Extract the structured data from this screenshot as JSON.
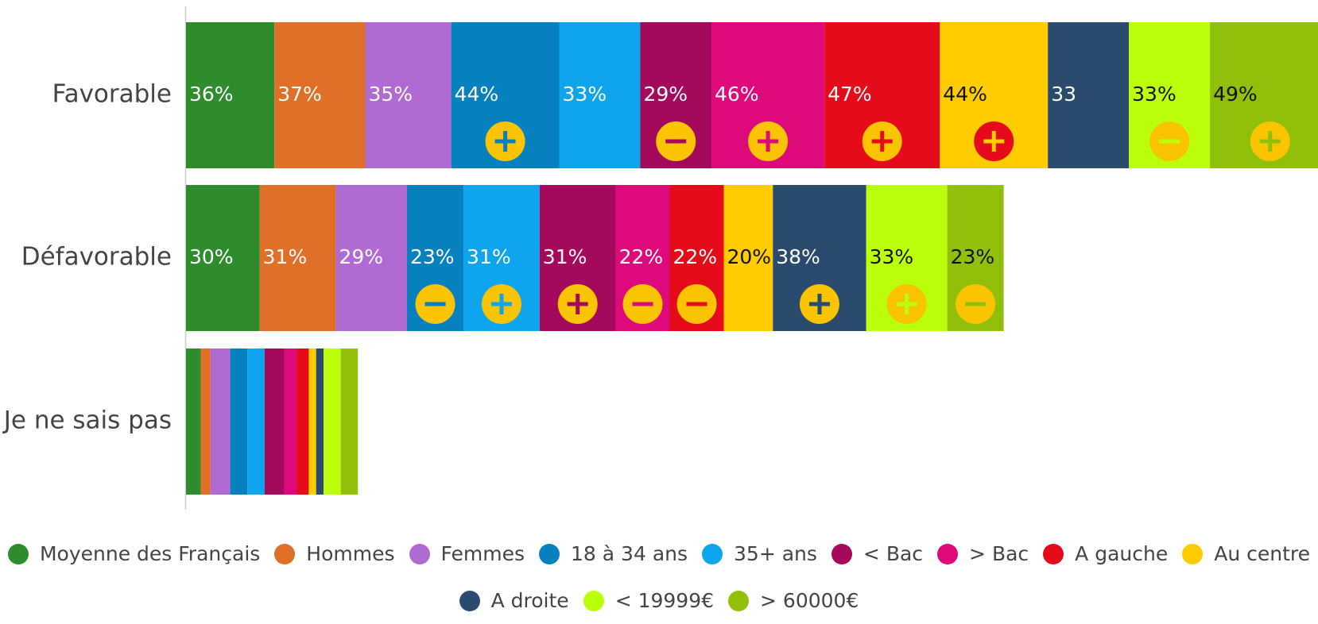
{
  "chart_data": {
    "type": "stacked-bar-horizontal",
    "categories": [
      "Favorable",
      "Défavorable",
      "Je ne sais pas"
    ],
    "xlim": [
      0,
      461
    ],
    "series": [
      {
        "name": "Moyenne des Français",
        "color": "#2e8b2e",
        "values": [
          36,
          30,
          6
        ],
        "value_labels": [
          "36%",
          "30%",
          null
        ],
        "significance": [
          null,
          null,
          null
        ]
      },
      {
        "name": "Hommes",
        "color": "#e07028",
        "values": [
          37,
          31,
          4
        ],
        "value_labels": [
          "37%",
          "31%",
          null
        ],
        "significance": [
          null,
          null,
          null
        ]
      },
      {
        "name": "Femmes",
        "color": "#b06ad4",
        "values": [
          35,
          29,
          8
        ],
        "value_labels": [
          "35%",
          "29%",
          null
        ],
        "significance": [
          null,
          null,
          null
        ]
      },
      {
        "name": "18 à 34 ans",
        "color": "#0780c0",
        "values": [
          44,
          23,
          7
        ],
        "value_labels": [
          "44%",
          "23%",
          null
        ],
        "significance": [
          "+",
          "-",
          null
        ]
      },
      {
        "name": "35+ ans",
        "color": "#0ea5ee",
        "values": [
          33,
          31,
          7
        ],
        "value_labels": [
          "33%",
          "31%",
          null
        ],
        "significance": [
          null,
          "+",
          null
        ]
      },
      {
        "name": "< Bac",
        "color": "#a5095c",
        "values": [
          29,
          31,
          8
        ],
        "value_labels": [
          "29%",
          "31%",
          null
        ],
        "significance": [
          "-",
          "+",
          null
        ]
      },
      {
        "name": "> Bac",
        "color": "#de0a7c",
        "values": [
          46,
          22,
          5
        ],
        "value_labels": [
          "46%",
          "22%",
          null
        ],
        "significance": [
          "+",
          "-",
          null
        ]
      },
      {
        "name": "A gauche",
        "color": "#e50b1b",
        "values": [
          47,
          22,
          5
        ],
        "value_labels": [
          "47%",
          "22%",
          null
        ],
        "significance": [
          "+",
          "-",
          null
        ]
      },
      {
        "name": "Au centre",
        "color": "#ffcc00",
        "values": [
          44,
          20,
          3
        ],
        "value_labels": [
          "44%",
          "20%",
          null
        ],
        "significance": [
          "+",
          null,
          null
        ]
      },
      {
        "name": "A droite",
        "color": "#2a4a6e",
        "values": [
          33,
          38,
          3
        ],
        "value_labels": [
          "33",
          "38%",
          null
        ],
        "significance": [
          null,
          "+",
          null
        ]
      },
      {
        "name": "< 19999€",
        "color": "#bbff0a",
        "values": [
          33,
          33,
          7
        ],
        "value_labels": [
          "33%",
          "33%",
          null
        ],
        "significance": [
          "-",
          "+",
          null
        ]
      },
      {
        "name": "> 60000€",
        "color": "#90c00a",
        "values": [
          49,
          23,
          7
        ],
        "value_labels": [
          "49%",
          "23%",
          null
        ],
        "significance": [
          "+",
          "-",
          null
        ]
      }
    ]
  }
}
